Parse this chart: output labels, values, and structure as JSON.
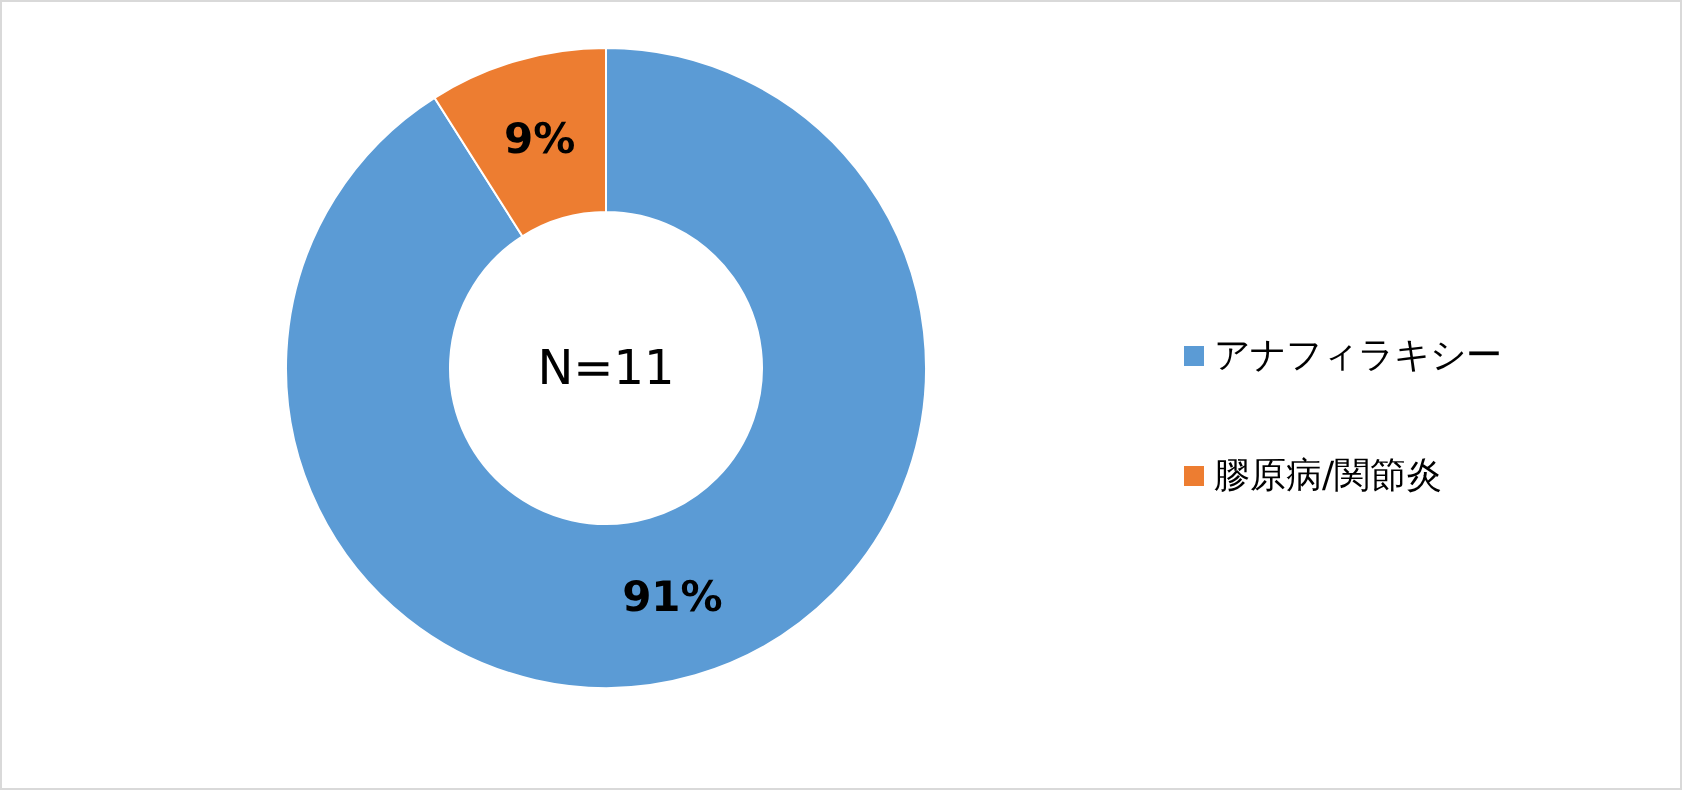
{
  "chart_data": {
    "type": "donut",
    "categories": [
      "アナフィラキシー",
      "膠原病/関節炎"
    ],
    "values": [
      91,
      9
    ],
    "colors": [
      "#5b9bd5",
      "#ed7d31"
    ],
    "value_labels": [
      "91%",
      "9%"
    ],
    "legend": "right",
    "annotations": [
      "N=11"
    ]
  }
}
